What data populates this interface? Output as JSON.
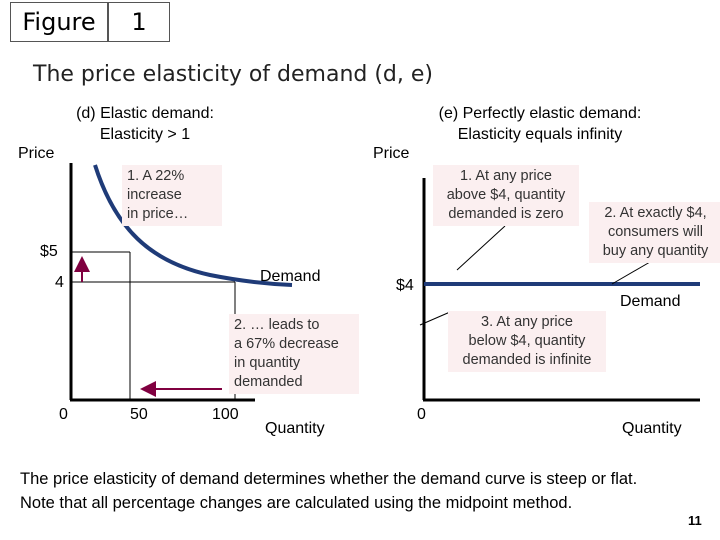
{
  "header": {
    "figure_label": "Figure",
    "figure_number": "1"
  },
  "title": "The price elasticity of demand (d, e)",
  "panel_d": {
    "subtitle_line1": "(d) Elastic demand:",
    "subtitle_line2": "Elasticity > 1",
    "y_axis_label": "Price",
    "x_axis_label": "Quantity",
    "price_high": "$5",
    "price_low": "4",
    "q_zero": "0",
    "q_50": "50",
    "q_100": "100",
    "curve_label": "Demand",
    "note1": [
      "1.  A 22%",
      "increase",
      "in price…"
    ],
    "note2": [
      "2. … leads to",
      "a 67% decrease",
      "in quantity",
      "demanded"
    ]
  },
  "panel_e": {
    "subtitle_line1": "(e) Perfectly elastic demand:",
    "subtitle_line2": "Elasticity equals infinity",
    "y_axis_label": "Price",
    "x_axis_label": "Quantity",
    "price": "$4",
    "q_zero": "0",
    "curve_label": "Demand",
    "note1": [
      "1. At any price",
      "above $4, quantity",
      "demanded is zero"
    ],
    "note2": [
      "2. At exactly $4,",
      "consumers will",
      "buy any quantity"
    ],
    "note3": [
      "3. At any price",
      "below $4, quantity",
      "demanded is infinite"
    ]
  },
  "footer": {
    "line1": "The price elasticity of demand determines whether the demand curve is steep or flat.",
    "line2": "Note that all percentage changes are calculated using the midpoint method."
  },
  "page_number": "11",
  "colors": {
    "arrow": "#800040",
    "curve": "#1f3b78",
    "note_bg": "#fbeff0"
  }
}
